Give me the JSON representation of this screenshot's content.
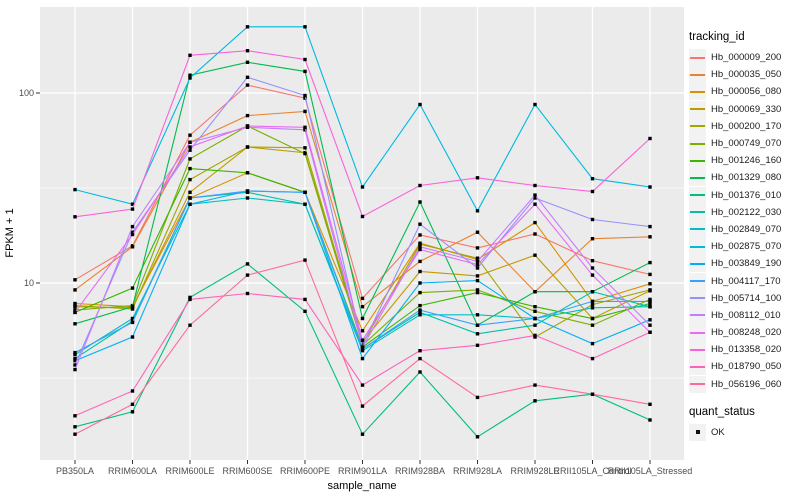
{
  "page": {
    "background": "#FFFFFF"
  },
  "panel": {
    "background": "#EBEBEB",
    "grid_color": "#FFFFFF",
    "tick_color": "#333333",
    "tick_label_color": "#4D4D4D",
    "axis_title_color": "#000000",
    "point_color": "#000000"
  },
  "axes": {
    "x_title": "sample_name",
    "y_title": "FPKM + 1",
    "y_tick_labels": [
      "100",
      "10"
    ]
  },
  "legend": {
    "tracking_title": "tracking_id",
    "quant_title": "quant_status",
    "key_background": "#F2F2F2",
    "quant_items": [
      {
        "label": "OK",
        "marker": "black-square"
      }
    ]
  },
  "chart_data": {
    "type": "line",
    "title": "",
    "xlabel": "sample_name",
    "ylabel": "FPKM + 1",
    "y_scale": "log10",
    "ylim": [
      1.2,
      290
    ],
    "y_major_ticks": [
      100,
      10
    ],
    "y_minor_gridlines": [
      31.6,
      3.16
    ],
    "grid": true,
    "legend_position": "right",
    "marker": "small-black-square",
    "categories": [
      "PB350LA",
      "RRIM600LA",
      "RRIM600LE",
      "RRIM600SE",
      "RRIM600PE",
      "RRIM901LA",
      "RRIM928BA",
      "RRIM928LA",
      "RRIM928LE",
      "RRII105LA_Control",
      "RRII105LA_Stressed"
    ],
    "series": [
      {
        "name": "Hb_000009_200",
        "color": "#F8766D",
        "values": [
          10.4,
          15.7,
          60,
          110,
          94,
          8.3,
          17.9,
          15.3,
          18.1,
          13.1,
          11.1
        ]
      },
      {
        "name": "Hb_000035_050",
        "color": "#EA8331",
        "values": [
          9.2,
          15.5,
          55,
          76,
          80,
          7.5,
          13.0,
          18.5,
          9.0,
          17.1,
          17.5
        ]
      },
      {
        "name": "Hb_000056_080",
        "color": "#D89000",
        "values": [
          7.8,
          7.5,
          28,
          38,
          30,
          5.6,
          16.2,
          13.3,
          20.8,
          8.0,
          9.9
        ]
      },
      {
        "name": "Hb_000069_330",
        "color": "#C09B00",
        "values": [
          7.5,
          7.4,
          30,
          52,
          48.5,
          4.9,
          11.5,
          10.9,
          14.0,
          6.5,
          9.1
        ]
      },
      {
        "name": "Hb_000200_170",
        "color": "#A3A500",
        "values": [
          7.6,
          7.3,
          35,
          52,
          51.5,
          4.8,
          16.0,
          13.5,
          5.2,
          7.7,
          9.2
        ]
      },
      {
        "name": "Hb_000749_070",
        "color": "#7CAE00",
        "values": [
          7.2,
          7.6,
          45,
          67,
          48,
          4.7,
          8.9,
          9.2,
          7.1,
          6.0,
          8.2
        ]
      },
      {
        "name": "Hb_001246_160",
        "color": "#39B600",
        "values": [
          7.0,
          9.4,
          40,
          38,
          30,
          4.6,
          7.6,
          8.9,
          7.5,
          6.5,
          7.8
        ]
      },
      {
        "name": "Hb_001329_080",
        "color": "#00BB4E",
        "values": [
          6.1,
          7.5,
          124,
          145,
          130,
          6.5,
          26.7,
          6.0,
          9.0,
          9.0,
          12.8
        ]
      },
      {
        "name": "Hb_001376_010",
        "color": "#00BF7D",
        "values": [
          1.75,
          2.1,
          8.4,
          12.6,
          7.1,
          1.6,
          3.4,
          1.55,
          2.4,
          2.6,
          1.9
        ]
      },
      {
        "name": "Hb_002122_030",
        "color": "#00C1A3",
        "values": [
          4.0,
          6.3,
          28,
          30,
          26,
          4.5,
          7.0,
          5.4,
          6.0,
          9.0,
          7.5
        ]
      },
      {
        "name": "Hb_002849_070",
        "color": "#00BFC4",
        "values": [
          4.2,
          6.5,
          26,
          28,
          26,
          4.4,
          6.8,
          6.8,
          6.5,
          7.4,
          7.5
        ]
      },
      {
        "name": "Hb_002875_070",
        "color": "#00BAE0",
        "values": [
          31,
          26,
          120,
          223,
          223,
          32,
          87,
          24,
          87,
          35.4,
          32
        ]
      },
      {
        "name": "Hb_003849_190",
        "color": "#00B0F6",
        "values": [
          3.9,
          5.2,
          26,
          30.5,
          30,
          4.0,
          10.0,
          10.3,
          6.5,
          4.8,
          6.4
        ]
      },
      {
        "name": "Hb_004117_170",
        "color": "#35A2FF",
        "values": [
          4.3,
          6.2,
          28,
          30.5,
          30,
          4.5,
          7.2,
          6.0,
          6.5,
          8.0,
          8.0
        ]
      },
      {
        "name": "Hb_005714_100",
        "color": "#9590FF",
        "values": [
          3.7,
          18.5,
          50,
          121,
          97,
          4.7,
          20.4,
          12.0,
          28,
          21.6,
          19.8
        ]
      },
      {
        "name": "Hb_008112_010",
        "color": "#C77CFF",
        "values": [
          3.5,
          19.8,
          55,
          66,
          64,
          4.6,
          15.5,
          13.0,
          29,
          12.0,
          6.0
        ]
      },
      {
        "name": "Hb_008248_020",
        "color": "#E76BF3",
        "values": [
          7.0,
          18.0,
          52,
          67,
          66,
          5.0,
          15.0,
          12.5,
          26,
          11.0,
          5.5
        ]
      },
      {
        "name": "Hb_013358_020",
        "color": "#FA62DB",
        "values": [
          22.3,
          24.5,
          158,
          167,
          150,
          22.4,
          32.6,
          35.8,
          32.6,
          30.3,
          57.6
        ]
      },
      {
        "name": "Hb_018790_050",
        "color": "#FF62BC",
        "values": [
          2.0,
          2.7,
          8.2,
          8.8,
          8.2,
          2.9,
          4.4,
          4.7,
          5.3,
          4.0,
          5.5
        ]
      },
      {
        "name": "Hb_056196_060",
        "color": "#FF6A98",
        "values": [
          1.6,
          2.3,
          6.0,
          11.0,
          13.2,
          2.25,
          4.0,
          2.5,
          2.9,
          2.6,
          2.3
        ]
      }
    ]
  }
}
